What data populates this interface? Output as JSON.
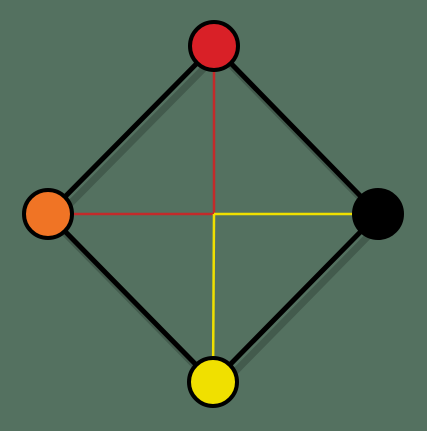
{
  "background": "#547160",
  "edge_color": "#000000",
  "shadow_color": "#3f5649",
  "nodes": [
    {
      "id": "top",
      "color": "#d92027"
    },
    {
      "id": "left",
      "color": "#f07425"
    },
    {
      "id": "right",
      "color": "#000000"
    },
    {
      "id": "bottom",
      "color": "#f0e000"
    }
  ],
  "edges": [
    {
      "from": "top",
      "to": "right"
    },
    {
      "from": "right",
      "to": "bottom"
    },
    {
      "from": "bottom",
      "to": "left"
    },
    {
      "from": "left",
      "to": "top"
    }
  ],
  "spokes": [
    {
      "to": "top",
      "color": "#c42a2a"
    },
    {
      "to": "left",
      "color": "#c42a2a"
    },
    {
      "to": "right",
      "color": "#f0e000"
    },
    {
      "to": "bottom",
      "color": "#f0e000"
    }
  ]
}
